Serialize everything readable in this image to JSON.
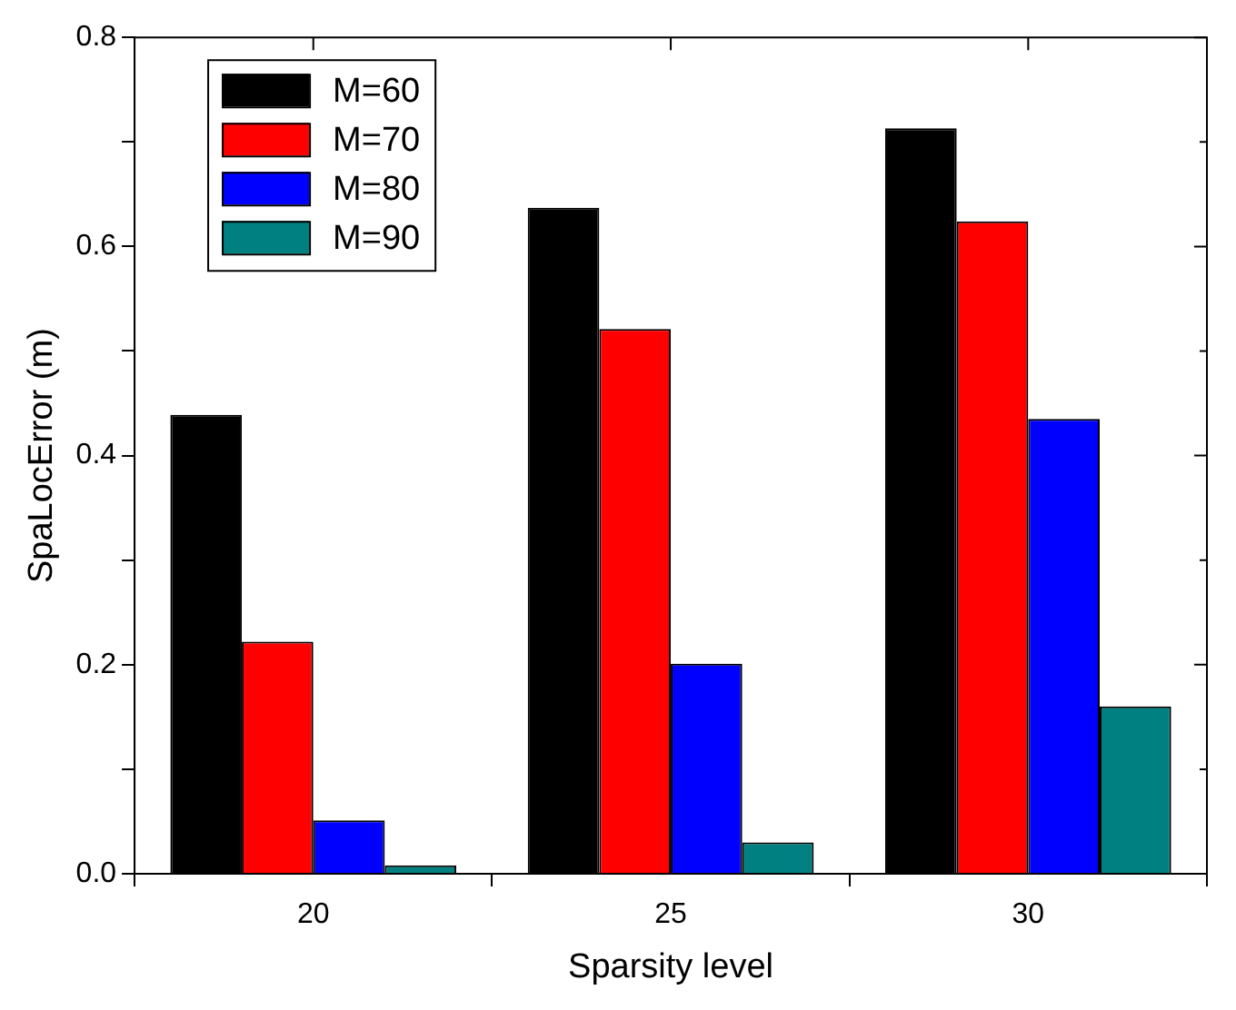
{
  "chart_data": {
    "type": "bar",
    "xlabel": "Sparsity level",
    "ylabel": "SpaLocError (m)",
    "categories": [
      "20",
      "25",
      "30"
    ],
    "series": [
      {
        "name": "M=60",
        "color": "#000000",
        "values": [
          0.439,
          0.637,
          0.713
        ]
      },
      {
        "name": "M=70",
        "color": "#ff0000",
        "values": [
          0.222,
          0.521,
          0.624
        ]
      },
      {
        "name": "M=80",
        "color": "#0000ff",
        "values": [
          0.051,
          0.201,
          0.435
        ]
      },
      {
        "name": "M=90",
        "color": "#008080",
        "values": [
          0.008,
          0.03,
          0.16
        ]
      }
    ],
    "ylim": [
      0,
      0.8
    ],
    "yticks": [
      {
        "value": 0,
        "label": "0.0"
      },
      {
        "value": 0.1,
        "label": null
      },
      0.2,
      {
        "value": 0.3,
        "label": null
      },
      0.4,
      {
        "value": 0.5,
        "label": null
      },
      0.6,
      {
        "value": 0.7,
        "label": null
      },
      0.8
    ],
    "grid": false,
    "legend": "top left"
  }
}
